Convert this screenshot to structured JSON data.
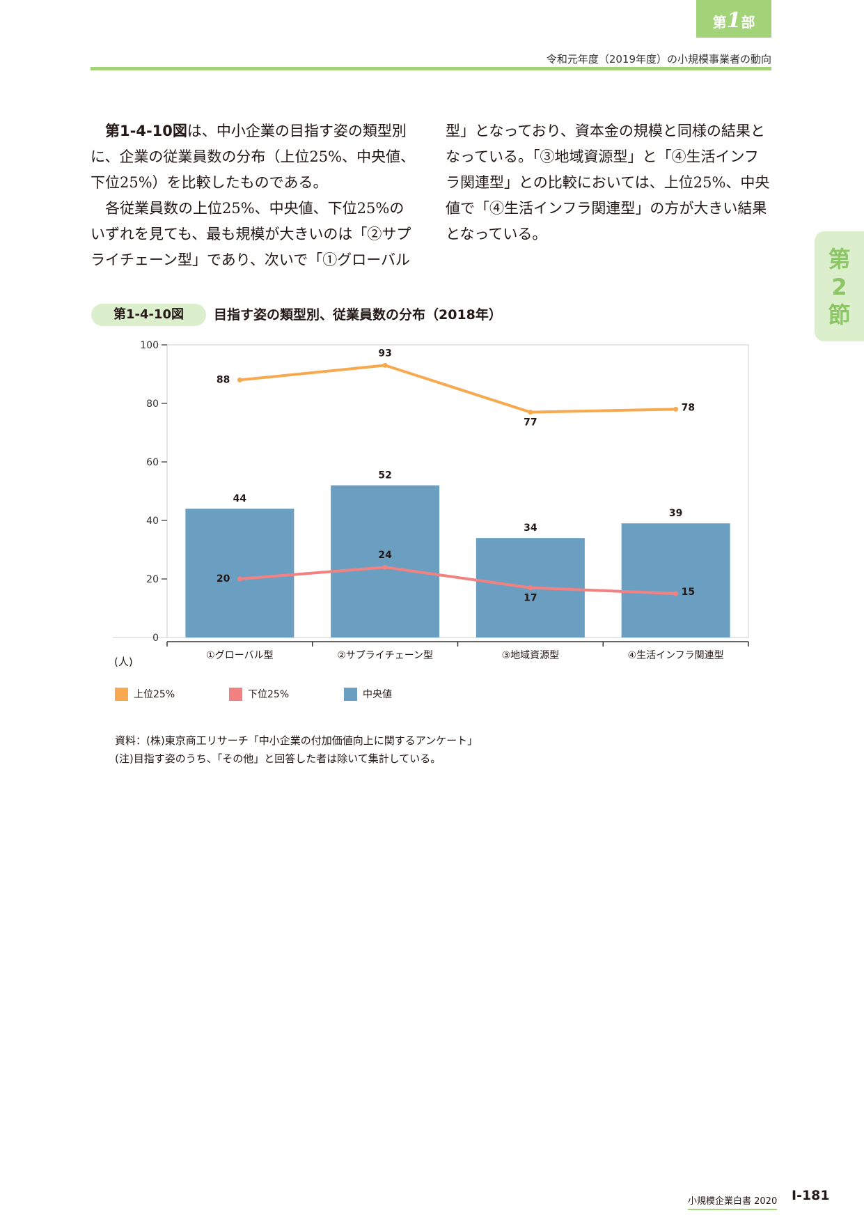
{
  "header": {
    "part_prefix": "第",
    "part_number": "1",
    "part_suffix": "部",
    "running_title": "令和元年度（2019年度）の小規模事業者の動向"
  },
  "section_tab": {
    "chars": [
      "第",
      "2",
      "節"
    ]
  },
  "body": {
    "left": {
      "p1_ref": "第1-4-10図",
      "p1_rest": "は、中小企業の目指す姿の類型別に、企業の従業員数の分布（上位25%、中央値、下位25%）を比較したものである。",
      "p2": "各従業員数の上位25%、中央値、下位25%のいずれを見ても、最も規模が大きいのは「②サプライチェーン型」であり、次いで「①グローバル"
    },
    "right": {
      "p1": "型」となっており、資本金の規模と同様の結果となっている。「③地域資源型」と「④生活インフラ関連型」との比較においては、上位25%、中央値で「④生活インフラ関連型」の方が大きい結果となっている。"
    }
  },
  "figure": {
    "badge": "第1-4-10図",
    "title": "目指す姿の類型別、従業員数の分布（2018年）"
  },
  "chart_data": {
    "type": "bar",
    "categories": [
      "①グローバル型",
      "②サプライチェーン型",
      "③地域資源型",
      "④生活インフラ関連型"
    ],
    "series": [
      {
        "name": "中央値",
        "type": "bar",
        "color": "#6b9fc2",
        "values": [
          44,
          52,
          34,
          39
        ]
      },
      {
        "name": "上位25%",
        "type": "line",
        "color": "#f7a94f",
        "values": [
          88,
          93,
          77,
          78
        ]
      },
      {
        "name": "下位25%",
        "type": "line",
        "color": "#f28181",
        "values": [
          20,
          24,
          17,
          15
        ]
      }
    ],
    "ylim": [
      0,
      100
    ],
    "yticks": [
      0,
      20,
      40,
      60,
      80,
      100
    ],
    "unit_label": "(人)",
    "legend_position": "bottom-left",
    "legend_order": [
      "上位25%",
      "下位25%",
      "中央値"
    ]
  },
  "notes": {
    "source": "資料：(株)東京商工リサーチ「中小企業の付加価値向上に関するアンケート」",
    "note": "(注)目指す姿のうち、「その他」と回答した者は除いて集計している。"
  },
  "footer": {
    "book_title": "小規模企業白書 2020",
    "page_number": "Ⅰ-181"
  }
}
